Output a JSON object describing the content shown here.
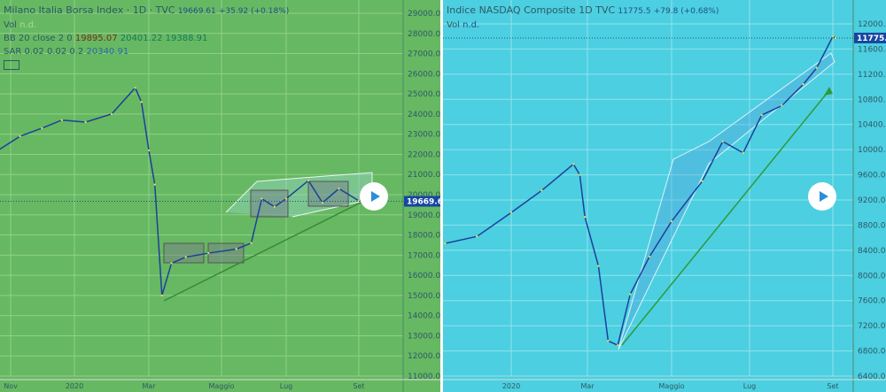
{
  "chart_data": [
    {
      "type": "line",
      "title": "Milano Italia Borsa Index · 1D · TVC",
      "last": "19669.61",
      "change": "+35.92 (+0.18%)",
      "vol_label": "Vol",
      "vol_value": "n.d.",
      "bb_label": "BB 20 close 2 0",
      "bb_values": [
        "19895.07",
        "20401.22",
        "19388.91"
      ],
      "sar_label": "SAR 0.02 0.02 0.2",
      "sar_value": "20340.91",
      "yticks": [
        "29000.00",
        "28000.00",
        "27000.00",
        "26000.00",
        "25000.00",
        "24000.00",
        "23000.00",
        "22000.00",
        "21000.00",
        "20000.00",
        "19000.00",
        "18000.00",
        "17000.00",
        "16000.00",
        "15000.00",
        "14000.00",
        "13000.00",
        "12000.00",
        "11000.00"
      ],
      "ylim": [
        11000,
        29000
      ],
      "xticks": [
        "Nov",
        "2020",
        "Mar",
        "Maggio",
        "Lug",
        "Set"
      ],
      "series": [
        {
          "color": "#1c3f9e",
          "points": [
            [
              "2019-10-20",
              22200
            ],
            [
              "2019-11-10",
              22900
            ],
            [
              "2019-12-01",
              23300
            ],
            [
              "2019-12-20",
              23700
            ],
            [
              "2020-01-10",
              23600
            ],
            [
              "2020-01-31",
              24000
            ],
            [
              "2020-02-19",
              25300
            ],
            [
              "2020-02-24",
              24600
            ],
            [
              "2020-03-01",
              22200
            ],
            [
              "2020-03-06",
              20500
            ],
            [
              "2020-03-12",
              15000
            ],
            [
              "2020-03-20",
              16600
            ],
            [
              "2020-04-01",
              16900
            ],
            [
              "2020-04-20",
              17100
            ],
            [
              "2020-05-15",
              17300
            ],
            [
              "2020-05-29",
              17600
            ],
            [
              "2020-06-08",
              19800
            ],
            [
              "2020-06-20",
              19400
            ],
            [
              "2020-07-01",
              19800
            ],
            [
              "2020-07-20",
              20700
            ],
            [
              "2020-08-01",
              19600
            ],
            [
              "2020-08-15",
              20300
            ],
            [
              "2020-09-01",
              19700
            ],
            [
              "2020-09-10",
              19669.61
            ]
          ]
        }
      ]
    },
    {
      "type": "line",
      "title": "Indice NASDAQ Composite  1D  TVC",
      "last": "11775.5",
      "change": "+79.8 (+0.68%)",
      "vol_label": "Vol",
      "vol_value": "n.d.",
      "yticks": [
        "12000.0",
        "11600.0",
        "11200.0",
        "10800.0",
        "10400.0",
        "10000.0",
        "9600.0",
        "9200.0",
        "8800.0",
        "8400.0",
        "8000.0",
        "7600.0",
        "7200.0",
        "6800.0",
        "6400.0"
      ],
      "ylim": [
        6400,
        12000
      ],
      "xticks": [
        "2020",
        "Mar",
        "Maggio",
        "Lug",
        "Set"
      ],
      "series": [
        {
          "color": "#1c3f9e",
          "points": [
            [
              "2019-11-10",
              8510
            ],
            [
              "2019-12-05",
              8620
            ],
            [
              "2020-01-01",
              9000
            ],
            [
              "2020-01-25",
              9350
            ],
            [
              "2020-02-19",
              9770
            ],
            [
              "2020-02-24",
              9600
            ],
            [
              "2020-02-28",
              8930
            ],
            [
              "2020-03-09",
              8150
            ],
            [
              "2020-03-16",
              6960
            ],
            [
              "2020-03-23",
              6890
            ],
            [
              "2020-04-01",
              7700
            ],
            [
              "2020-04-15",
              8300
            ],
            [
              "2020-05-01",
              8860
            ],
            [
              "2020-05-25",
              9500
            ],
            [
              "2020-06-10",
              10130
            ],
            [
              "2020-06-26",
              9950
            ],
            [
              "2020-07-10",
              10550
            ],
            [
              "2020-07-25",
              10700
            ],
            [
              "2020-08-10",
              11040
            ],
            [
              "2020-08-20",
              11300
            ],
            [
              "2020-09-01",
              11800
            ],
            [
              "2020-09-03",
              11775.5
            ]
          ]
        }
      ]
    }
  ]
}
